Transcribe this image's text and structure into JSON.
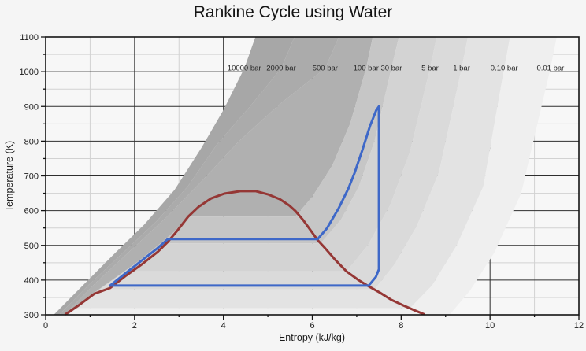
{
  "title": "Rankine Cycle using Water",
  "x_axis": {
    "label": "Entropy (kJ/kg)",
    "min": 0,
    "max": 12,
    "major_step": 2,
    "minor_step": 1,
    "tick_labels": [
      "0",
      "2",
      "4",
      "6",
      "8",
      "10",
      "12"
    ]
  },
  "y_axis": {
    "label": "Temperature (K)",
    "min": 300,
    "max": 1100,
    "major_step": 100,
    "minor_step": 50,
    "tick_labels": [
      "300",
      "400",
      "500",
      "600",
      "700",
      "800",
      "900",
      "1000",
      "1100"
    ]
  },
  "colors": {
    "page_background": "#f5f5f5",
    "plot_background": "#f7f7f7",
    "major_grid": "#2e2e2e",
    "minor_grid": "#d2d2d2",
    "plot_border": "#141414",
    "dome": "#953735",
    "cycle": "#3e68c8",
    "text": "#1a1a1a"
  },
  "chart_data": {
    "type": "line",
    "title": "Rankine Cycle using Water",
    "xlabel": "Entropy (kJ/kg)",
    "ylabel": "Temperature (K)",
    "xlim": [
      0,
      12
    ],
    "ylim": [
      300,
      1100
    ],
    "grid": "major and minor, hidden beneath opaque isobar bands",
    "legend": "none",
    "isobar_label_T": 1010,
    "series": [
      {
        "name": "saturation dome",
        "color": "#953735",
        "closed": false,
        "points": [
          [
            0.45,
            302
          ],
          [
            0.74,
            327
          ],
          [
            1.1,
            361
          ],
          [
            1.45,
            377
          ],
          [
            1.81,
            413
          ],
          [
            2.16,
            445
          ],
          [
            2.52,
            481
          ],
          [
            2.75,
            510
          ],
          [
            2.96,
            542
          ],
          [
            3.21,
            583
          ],
          [
            3.44,
            611
          ],
          [
            3.72,
            635
          ],
          [
            4.02,
            649
          ],
          [
            4.38,
            656
          ],
          [
            4.73,
            656
          ],
          [
            5.0,
            647
          ],
          [
            5.27,
            633
          ],
          [
            5.48,
            615
          ],
          [
            5.62,
            599
          ],
          [
            5.8,
            572
          ],
          [
            5.97,
            542
          ],
          [
            6.12,
            515
          ],
          [
            6.28,
            493
          ],
          [
            6.51,
            459
          ],
          [
            6.77,
            425
          ],
          [
            7.04,
            400
          ],
          [
            7.27,
            382
          ],
          [
            7.52,
            364
          ],
          [
            7.78,
            343
          ],
          [
            8.05,
            327
          ],
          [
            8.28,
            314
          ],
          [
            8.51,
            302
          ]
        ]
      },
      {
        "name": "Rankine cycle",
        "color": "#3e68c8",
        "closed": true,
        "points": [
          [
            1.45,
            384
          ],
          [
            1.8,
            420
          ],
          [
            2.15,
            455
          ],
          [
            2.5,
            490
          ],
          [
            2.75,
            518
          ],
          [
            6.12,
            518
          ],
          [
            6.33,
            549
          ],
          [
            6.59,
            606
          ],
          [
            6.81,
            663
          ],
          [
            6.95,
            708
          ],
          [
            7.13,
            776
          ],
          [
            7.3,
            844
          ],
          [
            7.44,
            889
          ],
          [
            7.5,
            900
          ],
          [
            7.5,
            431
          ],
          [
            7.43,
            409
          ],
          [
            7.34,
            395
          ],
          [
            7.27,
            384
          ]
        ]
      }
    ],
    "cycle_key_points": {
      "condenser_T_K": 384,
      "boiler_T_K": 518,
      "turbine_inlet": [
        7.5,
        900
      ],
      "turbine_exit": [
        7.27,
        384
      ],
      "feed_liquid": [
        1.45,
        384
      ],
      "saturated_liquid": [
        2.75,
        518
      ],
      "saturated_vapor": [
        6.12,
        518
      ]
    },
    "isobars": [
      {
        "label": "10000 bar",
        "label_s": 4.47,
        "points": [
          [
            0.18,
            300
          ],
          [
            0.8,
            380
          ],
          [
            1.5,
            470
          ],
          [
            2.22,
            560
          ],
          [
            2.9,
            660
          ],
          [
            3.5,
            780
          ],
          [
            4.0,
            890
          ],
          [
            4.47,
            1010
          ],
          [
            4.72,
            1100
          ]
        ]
      },
      {
        "label": "2000 bar",
        "label_s": 5.3,
        "points": [
          [
            0.3,
            300
          ],
          [
            1.0,
            390
          ],
          [
            1.75,
            480
          ],
          [
            2.5,
            570
          ],
          [
            3.2,
            670
          ],
          [
            3.85,
            790
          ],
          [
            4.6,
            900
          ],
          [
            5.3,
            1010
          ],
          [
            5.6,
            1100
          ]
        ]
      },
      {
        "label": "500 bar",
        "label_s": 6.29,
        "points": [
          [
            0.42,
            300
          ],
          [
            1.15,
            395
          ],
          [
            1.95,
            490
          ],
          [
            2.75,
            585
          ],
          [
            3.55,
            690
          ],
          [
            4.35,
            800
          ],
          [
            5.3,
            910
          ],
          [
            6.29,
            1010
          ],
          [
            6.6,
            1100
          ]
        ]
      },
      {
        "label": "100 bar",
        "label_s": 7.21,
        "points": [
          [
            0.5,
            300
          ],
          [
            1.0,
            355
          ],
          [
            1.5,
            400
          ],
          [
            2.0,
            445
          ],
          [
            2.5,
            497
          ],
          [
            2.9,
            540
          ],
          [
            3.2,
            583
          ],
          [
            5.62,
            583
          ],
          [
            6.0,
            640
          ],
          [
            6.45,
            730
          ],
          [
            6.85,
            850
          ],
          [
            7.21,
            1010
          ],
          [
            7.36,
            1100
          ]
        ]
      },
      {
        "label": "30 bar",
        "label_s": 7.78,
        "points": [
          [
            0.52,
            300
          ],
          [
            1.05,
            360
          ],
          [
            1.6,
            410
          ],
          [
            2.15,
            460
          ],
          [
            2.72,
            506
          ],
          [
            6.19,
            506
          ],
          [
            6.65,
            575
          ],
          [
            7.05,
            670
          ],
          [
            7.4,
            800
          ],
          [
            7.78,
            1010
          ],
          [
            7.95,
            1100
          ]
        ]
      },
      {
        "label": "5 bar",
        "label_s": 8.65,
        "points": [
          [
            0.55,
            300
          ],
          [
            1.1,
            362
          ],
          [
            1.63,
            410
          ],
          [
            1.97,
            425
          ],
          [
            6.77,
            425
          ],
          [
            7.25,
            500
          ],
          [
            7.75,
            615
          ],
          [
            8.2,
            770
          ],
          [
            8.65,
            1010
          ],
          [
            8.8,
            1100
          ]
        ]
      },
      {
        "label": "1 bar",
        "label_s": 9.36,
        "points": [
          [
            0.57,
            300
          ],
          [
            1.1,
            363
          ],
          [
            1.41,
            373
          ],
          [
            7.4,
            373
          ],
          [
            7.85,
            445
          ],
          [
            8.35,
            555
          ],
          [
            8.85,
            710
          ],
          [
            9.36,
            1010
          ],
          [
            9.5,
            1100
          ]
        ]
      },
      {
        "label": "0.10 bar",
        "label_s": 10.32,
        "points": [
          [
            0.5,
            300
          ],
          [
            0.7,
            319
          ],
          [
            8.2,
            319
          ],
          [
            8.7,
            385
          ],
          [
            9.25,
            500
          ],
          [
            9.85,
            670
          ],
          [
            10.32,
            1010
          ],
          [
            10.45,
            1100
          ]
        ]
      },
      {
        "label": "0.01 bar",
        "label_s": 11.36,
        "points": [
          [
            9.09,
            300
          ],
          [
            9.55,
            370
          ],
          [
            10.1,
            480
          ],
          [
            10.7,
            650
          ],
          [
            11.36,
            1010
          ],
          [
            11.5,
            1100
          ]
        ]
      }
    ],
    "bands": [
      {
        "between": [
          "10000 bar",
          "2000 bar"
        ],
        "color": "#a7a7a7"
      },
      {
        "between": [
          "2000 bar",
          "500 bar"
        ],
        "color": "#ababab"
      },
      {
        "between": [
          "500 bar",
          "100 bar"
        ],
        "color": "#b0b0b0"
      },
      {
        "between": [
          "100 bar",
          "30 bar"
        ],
        "color": "#c6c6c6"
      },
      {
        "between": [
          "30 bar",
          "5 bar"
        ],
        "color": "#d3d3d3"
      },
      {
        "between": [
          "5 bar",
          "1 bar"
        ],
        "color": "#dadada"
      },
      {
        "between": [
          "1 bar",
          "0.10 bar"
        ],
        "color": "#e3e3e3"
      },
      {
        "between": [
          "0.10 bar",
          "0.01 bar"
        ],
        "color": "#efefef"
      }
    ]
  }
}
